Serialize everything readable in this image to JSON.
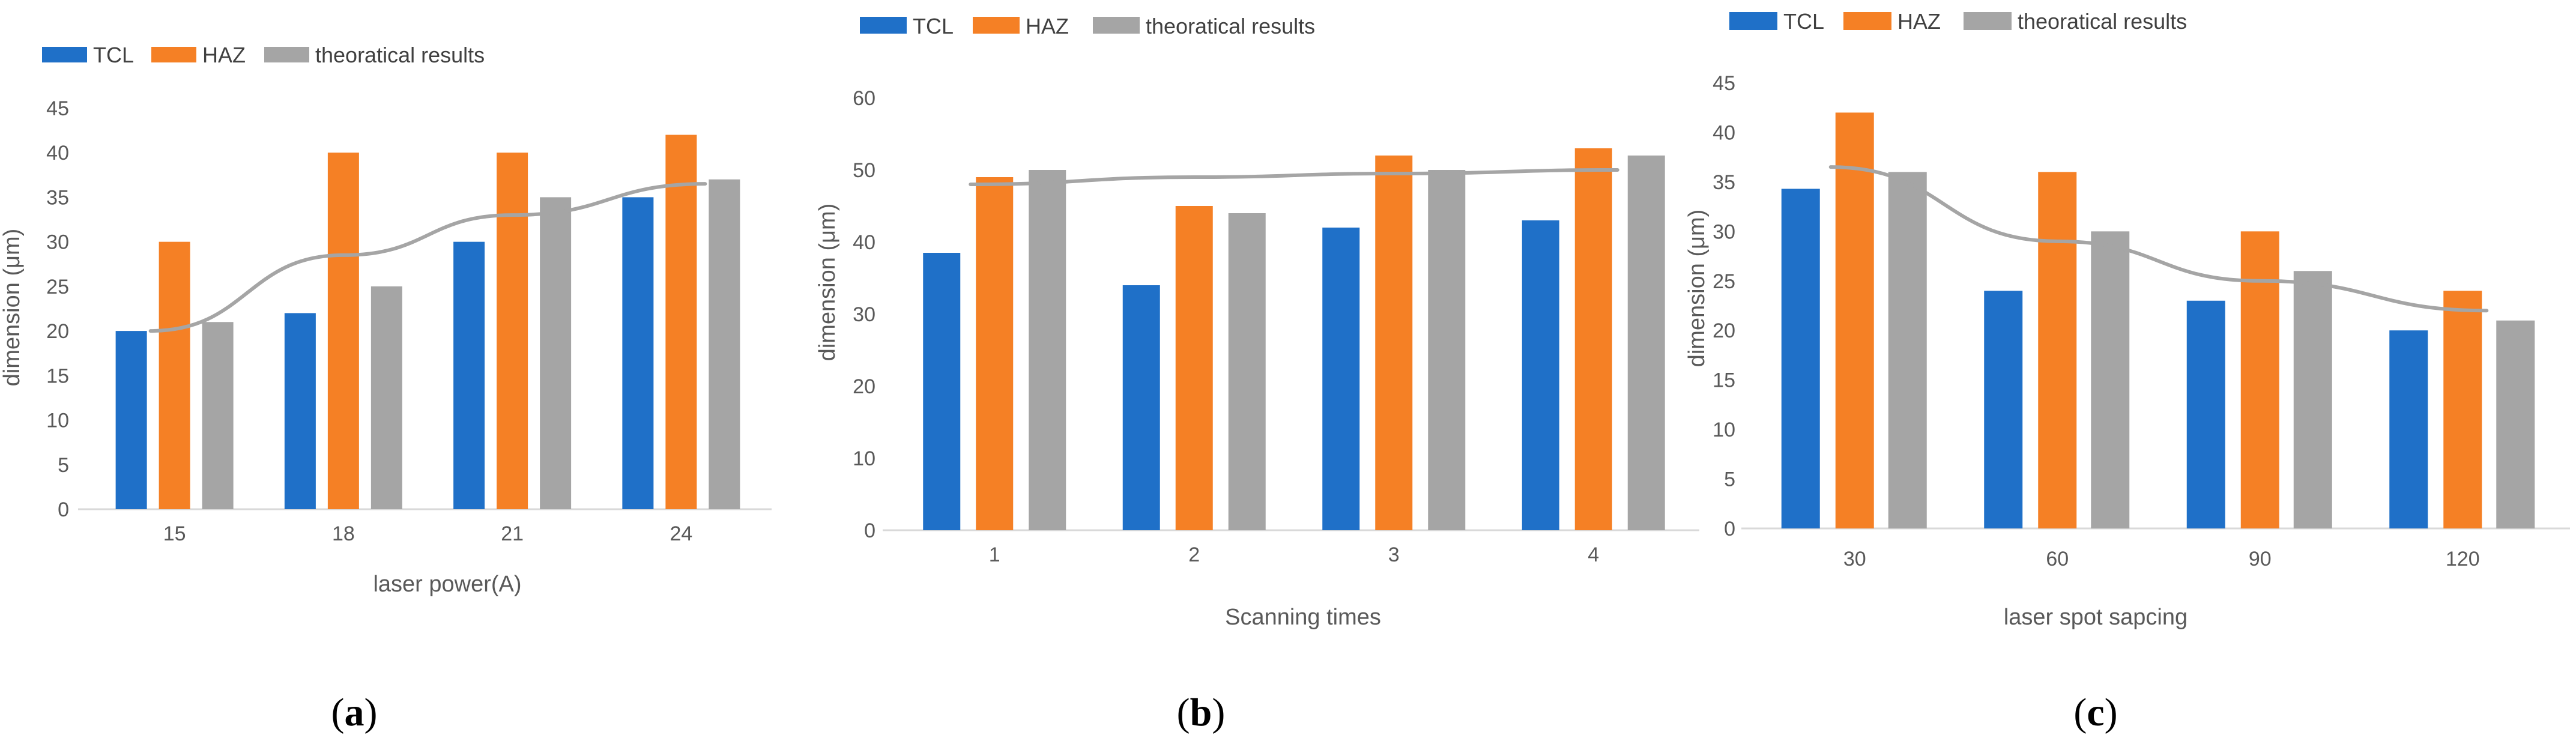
{
  "colors": {
    "tcl": "#1f70c8",
    "haz": "#f58025",
    "theory": "#a5a5a5",
    "trend": "#a5a5a5",
    "axis": "#d9d9d9"
  },
  "chart_data": [
    {
      "type": "bar",
      "panel": "a",
      "legend": [
        "TCL",
        "HAZ",
        "theoratical results"
      ],
      "categories": [
        "15",
        "18",
        "21",
        "24"
      ],
      "series": [
        {
          "name": "TCL",
          "values": [
            20,
            22,
            30,
            35
          ]
        },
        {
          "name": "HAZ",
          "values": [
            30,
            40,
            40,
            42
          ]
        },
        {
          "name": "theoratical results",
          "values": [
            21,
            25,
            35,
            37
          ]
        }
      ],
      "trendline": [
        20,
        28.5,
        33,
        36.5
      ],
      "ylim": [
        0,
        45
      ],
      "yticks": [
        "0",
        "5",
        "10",
        "15",
        "20",
        "25",
        "30",
        "35",
        "40",
        "45"
      ],
      "xlabel": "laser power(A)",
      "ylabel": "dimension (μm)",
      "caption_open": "(",
      "caption_letter": "a",
      "caption_close": ")"
    },
    {
      "type": "bar",
      "panel": "b",
      "legend": [
        "TCL",
        "HAZ",
        "theoratical results"
      ],
      "categories": [
        "1",
        "2",
        "3",
        "4"
      ],
      "series": [
        {
          "name": "TCL",
          "values": [
            38.5,
            34,
            42,
            43
          ]
        },
        {
          "name": "HAZ",
          "values": [
            49,
            45,
            52,
            53
          ]
        },
        {
          "name": "theoratical results",
          "values": [
            50,
            44,
            50,
            52
          ]
        }
      ],
      "trendline": [
        48,
        49,
        49.5,
        50
      ],
      "ylim": [
        0,
        60
      ],
      "yticks": [
        "0",
        "10",
        "20",
        "30",
        "40",
        "50",
        "60"
      ],
      "xlabel": "Scanning times",
      "ylabel": "dimension (μm)",
      "caption_open": "(",
      "caption_letter": "b",
      "caption_close": ")"
    },
    {
      "type": "bar",
      "panel": "c",
      "legend": [
        "TCL",
        "HAZ",
        "theoratical results"
      ],
      "categories": [
        "30",
        "60",
        "90",
        "120"
      ],
      "series": [
        {
          "name": "TCL",
          "values": [
            34.3,
            24,
            23,
            20
          ]
        },
        {
          "name": "HAZ",
          "values": [
            42,
            36,
            30,
            24
          ]
        },
        {
          "name": "theoratical results",
          "values": [
            36,
            30,
            26,
            21
          ]
        }
      ],
      "trendline": [
        36.5,
        29,
        25,
        22
      ],
      "ylim": [
        0,
        45
      ],
      "yticks": [
        "0",
        "5",
        "10",
        "15",
        "20",
        "25",
        "30",
        "35",
        "40",
        "45"
      ],
      "xlabel": "laser spot sapcing",
      "ylabel": "dimension (μm)",
      "caption_open": "(",
      "caption_letter": "c",
      "caption_close": ")"
    }
  ]
}
